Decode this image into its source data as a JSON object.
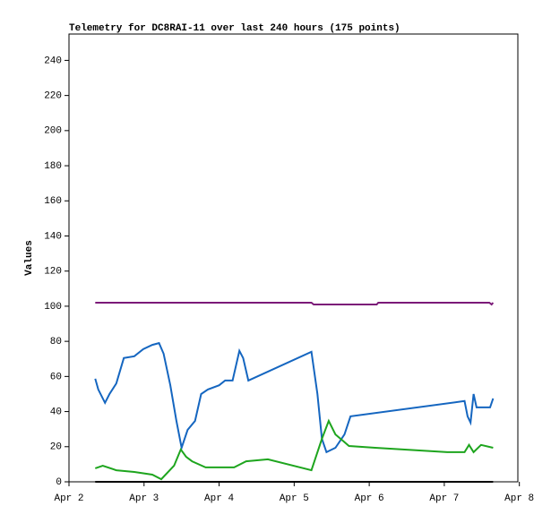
{
  "chart_data": {
    "type": "line",
    "title": "Telemetry for DC8RAI-11 over last 240 hours (175 points)",
    "y_label": "Values",
    "xlim": [
      2,
      7.98
    ],
    "xticks": [
      {
        "value": 2,
        "label": "Apr 2"
      },
      {
        "value": 3,
        "label": "Apr 3"
      },
      {
        "value": 4,
        "label": "Apr 4"
      },
      {
        "value": 5,
        "label": "Apr 5"
      },
      {
        "value": 6,
        "label": "Apr 6"
      },
      {
        "value": 7,
        "label": "Apr 7"
      },
      {
        "value": 8,
        "label": "Apr 8"
      }
    ],
    "ylim": [
      0,
      255
    ],
    "yticks": [
      0,
      20,
      40,
      60,
      80,
      100,
      120,
      140,
      160,
      180,
      200,
      220,
      240
    ],
    "series": [
      {
        "color": "#7b1a78",
        "x": [
          2.35,
          5.23,
          5.26,
          6.1,
          6.12,
          7.6,
          7.63,
          7.65
        ],
        "values": [
          102,
          102,
          101,
          101,
          102,
          102,
          101,
          102
        ]
      },
      {
        "color": "#1566c0",
        "x": [
          2.35,
          2.39,
          2.48,
          2.54,
          2.63,
          2.73,
          2.87,
          2.99,
          3.11,
          3.2,
          3.26,
          3.35,
          3.43,
          3.5,
          3.58,
          3.68,
          3.76,
          3.85,
          4.0,
          4.08,
          4.18,
          4.27,
          4.32,
          4.39,
          5.23,
          5.31,
          5.37,
          5.43,
          5.55,
          5.67,
          5.75,
          7.27,
          7.31,
          7.35,
          7.39,
          7.43,
          7.51,
          7.61,
          7.65
        ],
        "values": [
          58.7,
          52.6,
          45,
          50,
          56,
          70.5,
          71.5,
          75.6,
          78,
          79,
          73,
          55,
          35,
          19.4,
          29.6,
          34.7,
          50,
          52.6,
          55,
          57.7,
          57.7,
          74.6,
          70.5,
          57.7,
          74,
          50,
          24.5,
          16.9,
          19.4,
          27,
          37.3,
          46,
          37.3,
          33.7,
          50,
          42.4,
          42.4,
          42.4,
          47.5
        ]
      },
      {
        "color": "#1ea51e",
        "x": [
          2.35,
          2.45,
          2.63,
          2.87,
          3.11,
          3.23,
          3.4,
          3.49,
          3.56,
          3.64,
          3.82,
          4.2,
          4.36,
          4.65,
          5.23,
          5.37,
          5.46,
          5.55,
          5.73,
          6.08,
          7.04,
          7.27,
          7.33,
          7.39,
          7.49,
          7.65
        ],
        "values": [
          7.7,
          9.2,
          6.6,
          5.6,
          4.1,
          1.5,
          9.2,
          18.4,
          14.3,
          11.7,
          8.2,
          8.2,
          11.7,
          12.8,
          6.6,
          24.5,
          34.7,
          27,
          20.4,
          19.4,
          16.9,
          16.9,
          21,
          16.9,
          21,
          19.4
        ]
      },
      {
        "color": "#000000",
        "x": [
          2.35,
          7.65
        ],
        "values": [
          0,
          0
        ]
      }
    ]
  }
}
